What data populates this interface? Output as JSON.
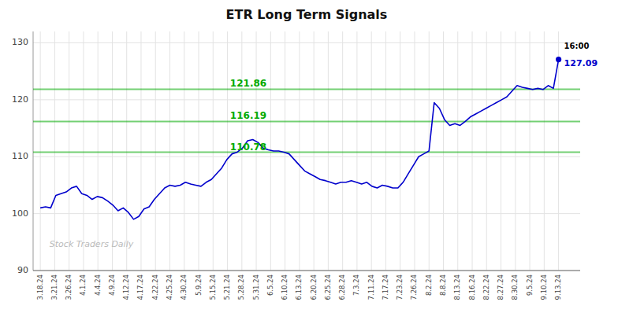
{
  "chart_data": {
    "type": "line",
    "title": "ETR Long Term Signals",
    "color": "#0000cc",
    "grid": true,
    "xlim": [
      -0.5,
      37.5
    ],
    "xticks": [
      {
        "value": 0,
        "label": "3.18.24"
      },
      {
        "value": 1,
        "label": "3.21.24"
      },
      {
        "value": 2,
        "label": "3.26.24"
      },
      {
        "value": 3,
        "label": "4.1.24"
      },
      {
        "value": 4,
        "label": "4.4.24"
      },
      {
        "value": 5,
        "label": "4.9.24"
      },
      {
        "value": 6,
        "label": "4.12.24"
      },
      {
        "value": 7,
        "label": "4.17.24"
      },
      {
        "value": 8,
        "label": "4.22.24"
      },
      {
        "value": 9,
        "label": "4.25.24"
      },
      {
        "value": 10,
        "label": "4.30.24"
      },
      {
        "value": 11,
        "label": "5.9.24"
      },
      {
        "value": 12,
        "label": "5.15.24"
      },
      {
        "value": 13,
        "label": "5.21.24"
      },
      {
        "value": 14,
        "label": "5.28.24"
      },
      {
        "value": 15,
        "label": "5.31.24"
      },
      {
        "value": 16,
        "label": "6.5.24"
      },
      {
        "value": 17,
        "label": "6.10.24"
      },
      {
        "value": 18,
        "label": "6.13.24"
      },
      {
        "value": 19,
        "label": "6.20.24"
      },
      {
        "value": 20,
        "label": "6.25.24"
      },
      {
        "value": 21,
        "label": "6.28.24"
      },
      {
        "value": 22,
        "label": "7.3.24"
      },
      {
        "value": 23,
        "label": "7.11.24"
      },
      {
        "value": 24,
        "label": "7.17.24"
      },
      {
        "value": 25,
        "label": "7.23.24"
      },
      {
        "value": 26,
        "label": "7.26.24"
      },
      {
        "value": 27,
        "label": "8.2.24"
      },
      {
        "value": 28,
        "label": "8.8.24"
      },
      {
        "value": 29,
        "label": "8.13.24"
      },
      {
        "value": 30,
        "label": "8.16.24"
      },
      {
        "value": 31,
        "label": "8.22.24"
      },
      {
        "value": 32,
        "label": "8.27.24"
      },
      {
        "value": 33,
        "label": "8.30.24"
      },
      {
        "value": 34,
        "label": "9.5.24"
      },
      {
        "value": 35,
        "label": "9.10.24"
      },
      {
        "value": 36,
        "label": "9.13.24"
      }
    ],
    "ylim": [
      90,
      132
    ],
    "yticks": [
      90,
      100,
      110,
      120,
      130
    ],
    "x": [
      0,
      0.36,
      0.72,
      1.08,
      1.44,
      1.8,
      2.16,
      2.52,
      2.88,
      3.24,
      3.6,
      3.96,
      4.32,
      4.68,
      5.04,
      5.4,
      5.76,
      6.12,
      6.48,
      6.84,
      7.2,
      7.56,
      7.92,
      8.28,
      8.64,
      9,
      9.36,
      9.72,
      10.08,
      10.44,
      10.8,
      11.16,
      11.52,
      11.88,
      12.24,
      12.6,
      12.96,
      13.32,
      13.68,
      14.04,
      14.4,
      14.76,
      15.12,
      15.48,
      15.84,
      16.2,
      16.56,
      16.92,
      17.28,
      17.64,
      18,
      18.36,
      18.72,
      19.08,
      19.44,
      19.8,
      20.16,
      20.52,
      20.88,
      21.24,
      21.6,
      21.96,
      22.32,
      22.68,
      23.04,
      23.4,
      23.76,
      24.12,
      24.48,
      24.84,
      25.2,
      25.56,
      25.92,
      26.28,
      26.64,
      27,
      27.36,
      27.72,
      28.08,
      28.44,
      28.8,
      29.16,
      29.52,
      29.88,
      30.24,
      30.6,
      30.96,
      31.32,
      31.68,
      32.04,
      32.4,
      32.76,
      33.12,
      33.48,
      33.84,
      34.2,
      34.56,
      34.92,
      35.28,
      35.64,
      36
    ],
    "values": [
      101.0,
      101.2,
      101.0,
      103.2,
      103.5,
      103.8,
      104.5,
      104.8,
      103.5,
      103.2,
      102.5,
      103.0,
      102.8,
      102.2,
      101.5,
      100.5,
      101.0,
      100.2,
      99.0,
      99.5,
      100.8,
      101.2,
      102.5,
      103.5,
      104.5,
      105.0,
      104.8,
      105.0,
      105.5,
      105.2,
      105.0,
      104.8,
      105.5,
      106.0,
      107.0,
      108.0,
      109.5,
      110.5,
      110.8,
      111.5,
      112.8,
      113.0,
      112.5,
      111.5,
      111.2,
      111.0,
      111.0,
      110.8,
      110.5,
      109.5,
      108.5,
      107.5,
      107.0,
      106.5,
      106.0,
      105.8,
      105.5,
      105.2,
      105.5,
      105.5,
      105.8,
      105.5,
      105.2,
      105.5,
      104.8,
      104.5,
      105.0,
      104.8,
      104.5,
      104.5,
      105.5,
      107.0,
      108.5,
      110.0,
      110.5,
      111.0,
      119.5,
      118.5,
      116.5,
      115.5,
      115.8,
      115.5,
      116.2,
      117.0,
      117.5,
      118.0,
      118.5,
      119.0,
      119.5,
      120.0,
      120.5,
      121.5,
      122.5,
      122.2,
      122.0,
      121.8,
      122.0,
      121.8,
      122.5,
      122.0,
      127.09
    ],
    "reference_lines": [
      {
        "value": 110.78,
        "label": "110.78",
        "color": "#00aa00"
      },
      {
        "value": 116.19,
        "label": "116.19",
        "color": "#00aa00"
      },
      {
        "value": 121.86,
        "label": "121.86",
        "color": "#00aa00"
      }
    ],
    "annotations": [
      "16:00",
      "127.09",
      "Stock Traders Daily"
    ]
  }
}
